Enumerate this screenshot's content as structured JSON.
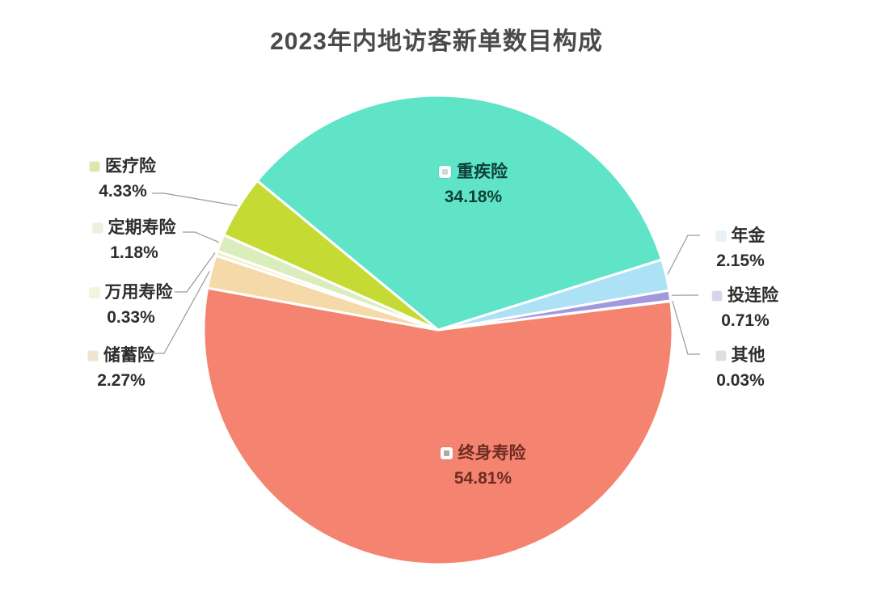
{
  "title": "2023年内地访客新单数目构成",
  "chart_data": {
    "type": "pie",
    "title": "2023年内地访客新单数目构成",
    "unit": "%",
    "start_angle_deg": -50.5,
    "direction": "clockwise",
    "legend_position": "callout-labels",
    "slices": [
      {
        "label": "重疾险",
        "value": 34.18,
        "pct_label": "34.18%",
        "color": "#60E4C7",
        "marker_color": "#CCD9D4",
        "label_placement": "inside"
      },
      {
        "label": "年金",
        "value": 2.15,
        "pct_label": "2.15%",
        "color": "#ADE2F6",
        "marker_color": "#E7F1F7",
        "label_placement": "outside-right"
      },
      {
        "label": "投连险",
        "value": 0.71,
        "pct_label": "0.71%",
        "color": "#A198DD",
        "marker_color": "#D8D5EA",
        "label_placement": "outside-right"
      },
      {
        "label": "其他",
        "value": 0.03,
        "pct_label": "0.03%",
        "color": "#C9C9C9",
        "marker_color": "#DFDFDF",
        "label_placement": "outside-right"
      },
      {
        "label": "终身寿险",
        "value": 54.81,
        "pct_label": "54.81%",
        "color": "#F48470",
        "marker_color": "#B5A89D",
        "label_placement": "inside"
      },
      {
        "label": "储蓄险",
        "value": 2.27,
        "pct_label": "2.27%",
        "color": "#F6D9A8",
        "marker_color": "#EFE4CD",
        "label_placement": "outside-left"
      },
      {
        "label": "万用寿险",
        "value": 0.33,
        "pct_label": "0.33%",
        "color": "#F3F0C4",
        "marker_color": "#F5F3DC",
        "label_placement": "outside-left"
      },
      {
        "label": "定期寿险",
        "value": 1.18,
        "pct_label": "1.18%",
        "color": "#DBEDBC",
        "marker_color": "#E9F2DC",
        "label_placement": "outside-left"
      },
      {
        "label": "医疗险",
        "value": 4.33,
        "pct_label": "4.33%",
        "color": "#C5DB33",
        "marker_color": "#DFE6A6",
        "label_placement": "outside-left"
      }
    ]
  },
  "colors": {
    "background": "#ffffff",
    "title_text": "#4a4a4a",
    "outer_label_text": "#2d2d2d",
    "inside_label_critical_text": "#0d3f36",
    "inside_label_whole_life_text": "#6e2b22",
    "leader_line": "#9a9a9a",
    "slice_border": "#ffffff"
  }
}
